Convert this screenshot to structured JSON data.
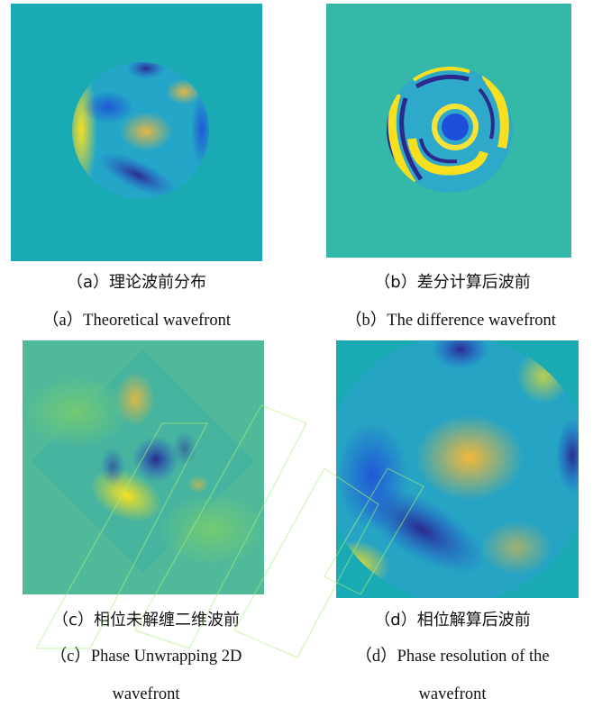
{
  "figures": [
    {
      "id": "a",
      "caption_cn": "（a）理论波前分布",
      "caption_en": [
        "（a）Theoretical wavefront"
      ]
    },
    {
      "id": "b",
      "caption_cn": "（b）差分计算后波前",
      "caption_en": [
        "（b）The difference wavefront"
      ]
    },
    {
      "id": "c",
      "caption_cn": "（c）相位未解缠二维波前",
      "caption_en": [
        "（c）Phase Unwrapping 2D",
        "wavefront"
      ]
    },
    {
      "id": "d",
      "caption_cn": "（d）相位解算后波前",
      "caption_en": [
        "（d）Phase resolution of the",
        "wavefront"
      ]
    }
  ],
  "colors": {
    "background_teal": "#1aaab3",
    "difference_bg": "#34b8a8",
    "yellow": "#f8e020",
    "orange": "#f5b83a",
    "blue": "#1f4fd8",
    "dark_blue": "#2b2a8c",
    "watermark": "#a8f07a"
  }
}
